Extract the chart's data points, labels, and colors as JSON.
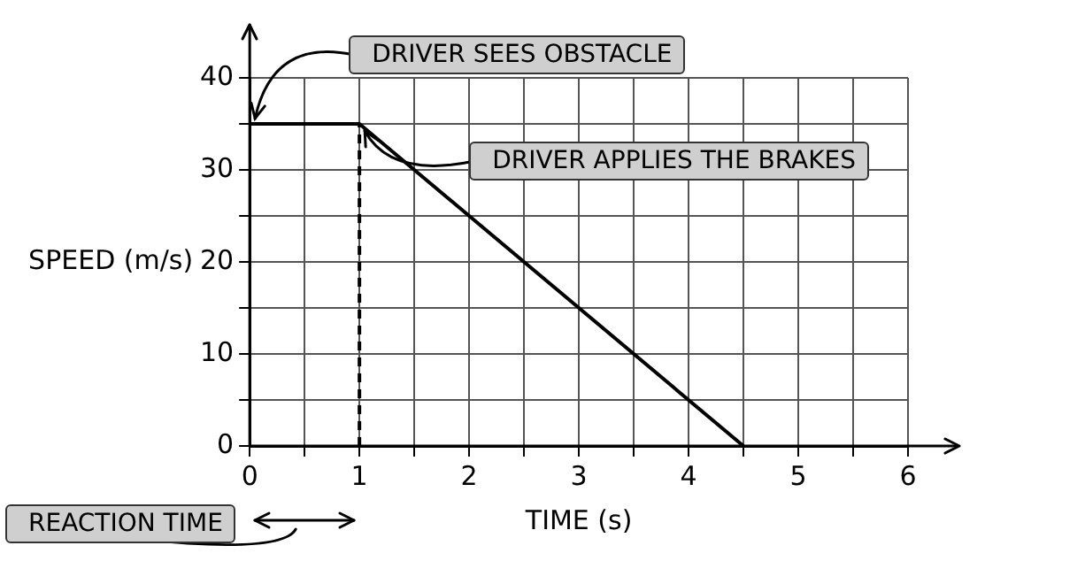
{
  "chart_data": {
    "type": "line",
    "xlabel": "TIME (s)",
    "ylabel": "SPEED (m/s)",
    "xlim": [
      0,
      6
    ],
    "ylim": [
      0,
      40
    ],
    "xticks": [
      0,
      {
        "value": 0.5,
        "label": null
      },
      1,
      {
        "value": 1.5,
        "label": null
      },
      2,
      {
        "value": 2.5,
        "label": null
      },
      3,
      {
        "value": 3.5,
        "label": null
      },
      4,
      {
        "value": 4.5,
        "label": null
      },
      5,
      {
        "value": 5.5,
        "label": null
      },
      6
    ],
    "yticks": [
      0,
      {
        "value": 5,
        "label": null
      },
      10,
      {
        "value": 15,
        "label": null
      },
      20,
      {
        "value": 25,
        "label": null
      },
      30,
      {
        "value": 35,
        "label": null
      },
      40
    ],
    "grid": true,
    "legend": false,
    "marker": "none",
    "series": [
      {
        "color": "#000000",
        "x": [
          0,
          1,
          4.5
        ],
        "values": [
          35,
          35,
          0
        ],
        "line_style": "solid"
      },
      {
        "color": "#000000",
        "x": [
          1,
          1
        ],
        "values": [
          0,
          35
        ],
        "line_style": "dashed"
      }
    ],
    "annotations": [
      {
        "text": "DRIVER SEES OBSTACLE",
        "x": 0,
        "y": 35
      },
      {
        "text": "DRIVER APPLIES THE BRAKES",
        "x": 1,
        "y": 35
      },
      "REACTION TIME"
    ]
  }
}
